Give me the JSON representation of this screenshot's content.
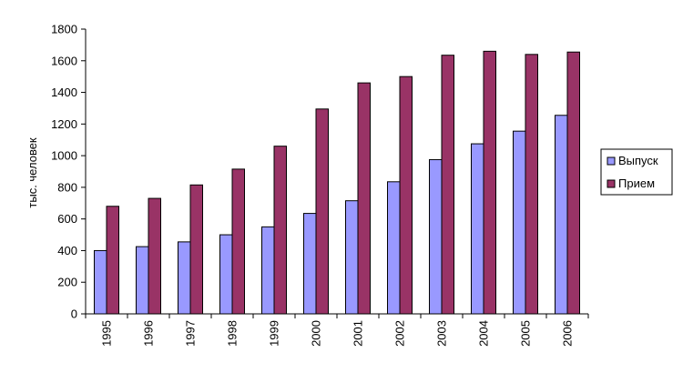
{
  "chart_data": {
    "type": "bar",
    "title": "",
    "xlabel": "",
    "ylabel": "тыс. человек",
    "ylim": [
      0,
      1800
    ],
    "yticks": [
      0,
      200,
      400,
      600,
      800,
      1000,
      1200,
      1400,
      1600,
      1800
    ],
    "categories": [
      "1995",
      "1996",
      "1997",
      "1998",
      "1999",
      "2000",
      "2001",
      "2002",
      "2003",
      "2004",
      "2005",
      "2006"
    ],
    "series": [
      {
        "name": "Выпуск",
        "color": "#9999ff",
        "values": [
          400,
          425,
          455,
          500,
          550,
          635,
          715,
          835,
          975,
          1075,
          1155,
          1255
        ]
      },
      {
        "name": "Прием",
        "color": "#993366",
        "values": [
          680,
          730,
          815,
          915,
          1060,
          1295,
          1460,
          1500,
          1635,
          1660,
          1640,
          1655
        ]
      }
    ],
    "grid": false,
    "legend": "right",
    "x_tick_rotation": "vertical"
  }
}
